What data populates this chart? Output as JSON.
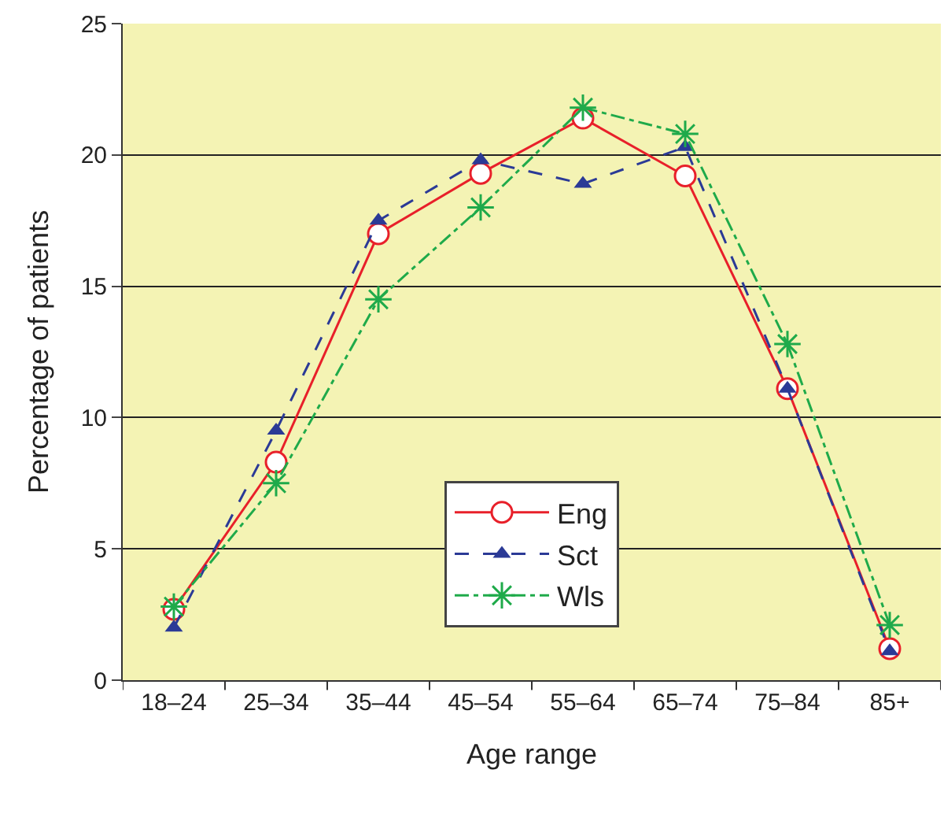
{
  "chart_data": {
    "type": "line",
    "xlabel": "Age range",
    "ylabel": "Percentage of patients",
    "categories": [
      "18–24",
      "25–34",
      "35–44",
      "45–54",
      "55–64",
      "65–74",
      "75–84",
      "85+"
    ],
    "series": [
      {
        "name": "Eng",
        "color": "#e8202a",
        "marker": "circle",
        "line_style": "solid",
        "values": [
          2.7,
          8.3,
          17.0,
          19.3,
          21.4,
          19.2,
          11.1,
          1.2
        ]
      },
      {
        "name": "Sct",
        "color": "#2b3a96",
        "marker": "triangle",
        "line_style": "dashed",
        "values": [
          2.0,
          9.5,
          17.5,
          19.8,
          18.9,
          20.3,
          11.1,
          1.1
        ]
      },
      {
        "name": "Wls",
        "color": "#1faa4a",
        "marker": "cross",
        "line_style": "dashdot",
        "values": [
          2.8,
          7.5,
          14.5,
          18.0,
          21.8,
          20.8,
          12.8,
          2.1
        ]
      }
    ],
    "ylim": [
      0,
      25
    ],
    "yticks": [
      0,
      5,
      10,
      15,
      20,
      25
    ],
    "grid": "y",
    "legend": "bottom"
  }
}
